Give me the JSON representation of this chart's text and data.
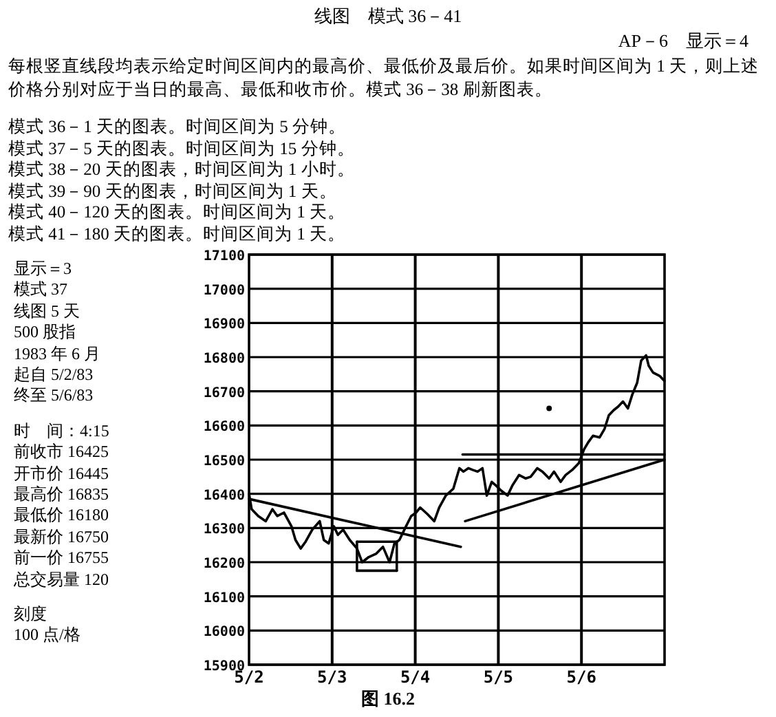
{
  "chart_data": {
    "type": "line",
    "title": "线图　模式 36－41",
    "subtitle": "AP－6　显示＝4",
    "annotations": [
      "每根竖直线段均表示给定时间区间内的最高价、最低价及最后价。如果时间区间为 1 天，则上述价格分别对应于当日的最高、最低和收市价。模式 36－38 刷新图表。",
      "模式 36－1 天的图表。时间区间为 5 分钟。",
      "模式 37－5 天的图表。时间区间为 15 分钟。",
      "模式 38－20 天的图表，时间区间为 1 小时。",
      "模式 39－90 天的图表，时间区间为 1 天。",
      "模式 40－120 天的图表。时间区间为 1 天。",
      "模式 41－180 天的图表。时间区间为 1 天。",
      "显示＝3",
      "模式 37",
      "线图 5 天",
      "500 股指",
      "1983 年 6 月",
      "起自 5/2/83",
      "终至 5/6/83",
      "时　间：4:15",
      "前收市 16425",
      "开市价 16445",
      "最高价 16835",
      "最低价 16180",
      "最新价 16750",
      "前一价 16755",
      "总交易量 120",
      "刻度",
      "100 点/格",
      "图 16.2"
    ],
    "xlim": [
      "1983-05-02T00:00",
      "1983-05-07T00:00"
    ],
    "xticks": [
      {
        "value": "1983-05-02T00:00",
        "label": "5/2"
      },
      {
        "value": "1983-05-03T00:00",
        "label": "5/3"
      },
      {
        "value": "1983-05-04T00:00",
        "label": "5/4"
      },
      {
        "value": "1983-05-05T00:00",
        "label": "5/5"
      },
      {
        "value": "1983-05-06T00:00",
        "label": "5/6"
      }
    ],
    "ylim": [
      15900,
      17100
    ],
    "yticks": [
      15900,
      16000,
      16100,
      16200,
      16300,
      16400,
      16500,
      16600,
      16700,
      16800,
      16900,
      17000,
      17100
    ],
    "grid": "y",
    "ref_lines": [
      {
        "axis": "x",
        "value": "1983-05-03T00:00",
        "label": null
      },
      {
        "axis": "x",
        "value": "1983-05-04T00:00",
        "label": null
      },
      {
        "axis": "x",
        "value": "1983-05-05T00:00",
        "label": null
      },
      {
        "axis": "x",
        "value": "1983-05-06T00:00",
        "label": null
      }
    ],
    "series": [
      {
        "color": "#000000",
        "x": [
          "1983-05-02T00:00",
          "1983-05-02T00:45",
          "1983-05-02T02:40",
          "1983-05-02T04:50",
          "1983-05-02T06:45",
          "1983-05-02T08:10",
          "1983-05-02T10:05",
          "1983-05-02T12:15",
          "1983-05-02T13:25",
          "1983-05-02T14:55",
          "1983-05-02T16:20",
          "1983-05-02T18:15",
          "1983-05-02T20:25",
          "1983-05-02T21:35",
          "1983-05-02T23:00",
          "1983-05-03T00:30",
          "1983-05-03T01:40",
          "1983-05-03T03:10",
          "1983-05-03T05:05",
          "1983-05-03T07:10",
          "1983-05-03T08:40",
          "1983-05-03T10:35",
          "1983-05-03T12:45",
          "1983-05-03T14:40",
          "1983-05-03T16:35",
          "1983-05-03T18:00",
          "1983-05-03T19:25",
          "1983-05-03T21:20",
          "1983-05-03T22:50",
          "1983-05-04T00:15",
          "1983-05-04T01:25",
          "1983-05-04T03:35",
          "1983-05-04T05:30",
          "1983-05-04T06:55",
          "1983-05-04T08:50",
          "1983-05-04T11:00",
          "1983-05-04T12:45",
          "1983-05-04T13:55",
          "1983-05-04T15:20",
          "1983-05-04T16:35",
          "1983-05-04T18:00",
          "1983-05-04T19:25",
          "1983-05-04T20:40",
          "1983-05-04T22:05",
          "1983-05-04T23:15",
          "1983-05-05T00:45",
          "1983-05-05T02:40",
          "1983-05-05T04:05",
          "1983-05-05T06:00",
          "1983-05-05T07:55",
          "1983-05-05T09:20",
          "1983-05-05T11:15",
          "1983-05-05T12:45",
          "1983-05-05T14:40",
          "1983-05-05T16:05",
          "1983-05-05T18:00",
          "1983-05-05T19:25",
          "1983-05-05T21:20",
          "1983-05-05T23:15",
          "1983-05-06T00:45",
          "1983-05-06T01:55",
          "1983-05-06T03:20",
          "1983-05-06T05:15",
          "1983-05-06T06:40",
          "1983-05-06T07:55",
          "1983-05-06T09:20",
          "1983-05-06T10:35",
          "1983-05-06T12:00",
          "1983-05-06T13:25",
          "1983-05-06T14:40",
          "1983-05-06T16:05",
          "1983-05-06T17:15",
          "1983-05-06T18:40",
          "1983-05-06T19:25",
          "1983-05-06T20:40",
          "1983-05-06T22:35",
          "1983-05-07T00:00"
        ],
        "values": [
          16400,
          16355,
          16335,
          16320,
          16355,
          16335,
          16345,
          16305,
          16265,
          16240,
          16260,
          16295,
          16320,
          16265,
          16255,
          16305,
          16280,
          16295,
          16265,
          16240,
          16200,
          16215,
          16225,
          16245,
          16200,
          16255,
          16265,
          16305,
          16335,
          16345,
          16360,
          16340,
          16320,
          16360,
          16395,
          16415,
          16475,
          16465,
          16475,
          16470,
          16465,
          16475,
          16395,
          16435,
          16425,
          16410,
          16395,
          16425,
          16455,
          16445,
          16450,
          16475,
          16465,
          16445,
          16465,
          16435,
          16455,
          16470,
          16490,
          16530,
          16550,
          16570,
          16565,
          16590,
          16630,
          16645,
          16655,
          16670,
          16650,
          16690,
          16725,
          16790,
          16805,
          16775,
          16755,
          16745,
          16730
        ]
      },
      {
        "color": "#000000",
        "x": [
          "1983-05-02T00:00",
          "1983-05-04T13:10"
        ],
        "values": [
          16385,
          16245
        ]
      },
      {
        "color": "#000000",
        "x": [
          "1983-05-04T14:25",
          "1983-05-07T00:00"
        ],
        "values": [
          16320,
          16500
        ]
      },
      {
        "color": "#000000",
        "x": [
          "1983-05-04T13:40",
          "1983-05-07T00:00"
        ],
        "values": [
          16515,
          16515
        ]
      },
      {
        "color": "#000000",
        "x": [
          "1983-05-03T07:10",
          "1983-05-03T18:40"
        ],
        "values": [
          16260,
          16260
        ]
      },
      {
        "color": "#000000",
        "x": [
          "1983-05-03T07:10",
          "1983-05-03T18:40"
        ],
        "values": [
          16175,
          16175
        ]
      },
      {
        "color": "#000000",
        "x": [
          "1983-05-03T07:10",
          "1983-05-03T07:10"
        ],
        "values": [
          16175,
          16260
        ]
      },
      {
        "color": "#000000",
        "x": [
          "1983-05-03T18:40",
          "1983-05-03T18:40"
        ],
        "values": [
          16175,
          16260
        ]
      },
      {
        "type": "scatter",
        "marker": "circle",
        "color": "#000000",
        "x": [
          "1983-05-05T14:40"
        ],
        "values": [
          16650
        ]
      }
    ]
  }
}
